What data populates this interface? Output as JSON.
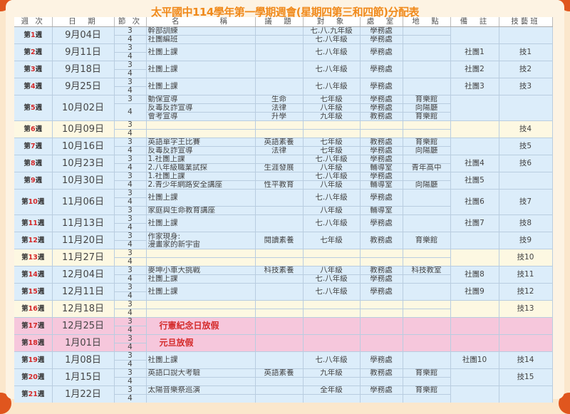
{
  "title": "太平國中114學年第一學期週會(星期四第三和四節)分配表",
  "headers": [
    "週 次",
    "日　期",
    "節 次",
    "名　　　　稱",
    "議　題",
    "對　象",
    "處　室",
    "地　點",
    "備　註",
    "技藝班"
  ],
  "colors": {
    "title": "#f08a1c",
    "week_number": "#d42a2a",
    "regular": "#dcedfa",
    "empty_week": "#fdf8e2",
    "holiday": "#f6c7dc"
  },
  "weeks": [
    {
      "n": "1",
      "date": "9月04日",
      "style": "blue",
      "rows": 2,
      "periods": [
        [
          "3",
          1
        ],
        [
          "4",
          1
        ]
      ],
      "items": [
        {
          "span": 1,
          "name": "幹部訓練",
          "topic": "",
          "target": "七.八.九年級",
          "office": "學務處",
          "place": ""
        },
        {
          "span": 1,
          "name": "社團編班",
          "topic": "",
          "target": "七.八年級",
          "office": "學務處",
          "place": ""
        }
      ],
      "note": "",
      "tech": ""
    },
    {
      "n": "2",
      "date": "9月11日",
      "style": "blue",
      "rows": 2,
      "periods": [
        [
          "3",
          1
        ],
        [
          "4",
          1
        ]
      ],
      "items": [
        {
          "span": 2,
          "name": "社團上課",
          "topic": "",
          "target": "七.八年級",
          "office": "學務處",
          "place": ""
        }
      ],
      "note": "社團1",
      "tech": "技1"
    },
    {
      "n": "3",
      "date": "9月18日",
      "style": "blue",
      "rows": 2,
      "periods": [
        [
          "3",
          1
        ],
        [
          "4",
          1
        ]
      ],
      "items": [
        {
          "span": 2,
          "name": "社團上課",
          "topic": "",
          "target": "七.八年級",
          "office": "學務處",
          "place": ""
        }
      ],
      "note": "社團2",
      "tech": "技2"
    },
    {
      "n": "4",
      "date": "9月25日",
      "style": "blue",
      "rows": 2,
      "periods": [
        [
          "3",
          1
        ],
        [
          "4",
          1
        ]
      ],
      "items": [
        {
          "span": 2,
          "name": "社團上課",
          "topic": "",
          "target": "七.八年級",
          "office": "學務處",
          "place": ""
        }
      ],
      "note": "社團3",
      "tech": "技3"
    },
    {
      "n": "5",
      "date": "10月02日",
      "style": "blue",
      "rows": 3,
      "periods": [
        [
          "3",
          1
        ],
        [
          "4",
          2
        ]
      ],
      "items": [
        {
          "span": 1,
          "name": "動保宣導",
          "topic": "生命",
          "target": "七年級",
          "office": "學務處",
          "place": "育樂館"
        },
        {
          "span": 1,
          "name": "反毒反詐宣導",
          "topic": "法律",
          "target": "八年級",
          "office": "學務處",
          "place": "向陽廳"
        },
        {
          "span": 1,
          "name": "會考宣導",
          "topic": "升學",
          "target": "九年級",
          "office": "教務處",
          "place": "育樂館"
        }
      ],
      "note": "",
      "tech": ""
    },
    {
      "n": "6",
      "date": "10月09日",
      "style": "yellow",
      "rows": 2,
      "periods": [
        [
          "3",
          1
        ],
        [
          "4",
          1
        ]
      ],
      "items": [
        {
          "span": 1,
          "name": "",
          "topic": "",
          "target": "",
          "office": "",
          "place": ""
        },
        {
          "span": 1,
          "name": "",
          "topic": "",
          "target": "",
          "office": "",
          "place": ""
        }
      ],
      "note": "",
      "tech": "技4"
    },
    {
      "n": "7",
      "date": "10月16日",
      "style": "blue",
      "rows": 2,
      "periods": [
        [
          "3",
          1
        ],
        [
          "4",
          1
        ]
      ],
      "items": [
        {
          "span": 1,
          "name": "英語單字王比賽",
          "topic": "英語素養",
          "target": "七年級",
          "office": "教務處",
          "place": "育樂館"
        },
        {
          "span": 1,
          "name": "反毒反詐宣導",
          "topic": "法律",
          "target": "七年級",
          "office": "學務處",
          "place": "向陽廳"
        }
      ],
      "note": "",
      "tech": "技5"
    },
    {
      "n": "8",
      "date": "10月23日",
      "style": "blue",
      "rows": 2,
      "periods": [
        [
          "3",
          1
        ],
        [
          "4",
          1
        ]
      ],
      "items": [
        {
          "span": 1,
          "name": "1.社團上課",
          "topic": "",
          "target": "七.八年級",
          "office": "學務處",
          "place": ""
        },
        {
          "span": 1,
          "name": "2.八年級職業試探",
          "topic": "生涯發展",
          "target": "八年級",
          "office": "輔導室",
          "place": "青年高中"
        }
      ],
      "note": "社團4",
      "tech": "技6"
    },
    {
      "n": "9",
      "date": "10月30日",
      "style": "blue",
      "rows": 2,
      "periods": [
        [
          "3",
          1
        ],
        [
          "4",
          1
        ]
      ],
      "items": [
        {
          "span": 1,
          "name": "1.社團上課",
          "topic": "",
          "target": "七.八年級",
          "office": "學務處",
          "place": ""
        },
        {
          "span": 1,
          "name": "2.青少年網路安全講座",
          "topic": "性平教育",
          "target": "八年級",
          "office": "輔導室",
          "place": "向陽廳"
        }
      ],
      "note": "社團5",
      "tech": ""
    },
    {
      "n": "10",
      "date": "11月06日",
      "style": "blue",
      "rows": 3,
      "periods": [
        [
          "3",
          1
        ],
        [
          "4",
          1
        ],
        [
          "3",
          1
        ]
      ],
      "items": [
        {
          "span": 2,
          "name": "社團上課",
          "topic": "",
          "target": "七.八年級",
          "office": "學務處",
          "place": ""
        },
        {
          "span": 1,
          "name": "家庭與生命教育講座",
          "topic": "",
          "target": "八年級",
          "office": "輔導室",
          "place": ""
        }
      ],
      "note": "社團6",
      "tech": "技7"
    },
    {
      "n": "11",
      "date": "11月13日",
      "style": "blue",
      "rows": 2,
      "periods": [
        [
          "3",
          1
        ],
        [
          "4",
          1
        ]
      ],
      "items": [
        {
          "span": 2,
          "name": "社團上課",
          "topic": "",
          "target": "七.八年級",
          "office": "學務處",
          "place": ""
        }
      ],
      "note": "社團7",
      "tech": "技8"
    },
    {
      "n": "12",
      "date": "11月20日",
      "style": "blue",
      "rows": 2,
      "periods": [
        [
          "3",
          1
        ],
        [
          "4",
          1
        ]
      ],
      "items": [
        {
          "span": 2,
          "name": "作家現身:\n漫畫家的新宇宙",
          "topic": "閱讀素養",
          "target": "七年級",
          "office": "教務處",
          "place": "育樂館"
        }
      ],
      "note": "",
      "tech": "技9"
    },
    {
      "n": "13",
      "date": "11月27日",
      "style": "yellow",
      "rows": 2,
      "periods": [
        [
          "3",
          1
        ],
        [
          "4",
          1
        ]
      ],
      "items": [
        {
          "span": 1,
          "name": "",
          "topic": "",
          "target": "",
          "office": "",
          "place": ""
        },
        {
          "span": 1,
          "name": "",
          "topic": "",
          "target": "",
          "office": "",
          "place": ""
        }
      ],
      "note": "",
      "tech": "技10"
    },
    {
      "n": "14",
      "date": "12月04日",
      "style": "blue",
      "rows": 2,
      "periods": [
        [
          "3",
          1
        ],
        [
          "4",
          1
        ]
      ],
      "items": [
        {
          "span": 1,
          "name": "麥坤小車大挑戰",
          "topic": "科技素養",
          "target": "八年級",
          "office": "教務處",
          "place": "科技教室"
        },
        {
          "span": 1,
          "name": "社團上課",
          "topic": "",
          "target": "七.八年級",
          "office": "學務處",
          "place": ""
        }
      ],
      "note": "社團8",
      "tech": "技11"
    },
    {
      "n": "15",
      "date": "12月11日",
      "style": "blue",
      "rows": 2,
      "periods": [
        [
          "3",
          1
        ],
        [
          "4",
          1
        ]
      ],
      "items": [
        {
          "span": 2,
          "name": "社團上課",
          "topic": "",
          "target": "七.八年級",
          "office": "學務處",
          "place": ""
        }
      ],
      "note": "社團9",
      "tech": "技12"
    },
    {
      "n": "16",
      "date": "12月18日",
      "style": "yellow",
      "rows": 2,
      "periods": [
        [
          "3",
          1
        ],
        [
          "4",
          1
        ]
      ],
      "items": [
        {
          "span": 1,
          "name": "",
          "topic": "",
          "target": "",
          "office": "",
          "place": ""
        },
        {
          "span": 1,
          "name": "",
          "topic": "",
          "target": "",
          "office": "",
          "place": ""
        }
      ],
      "note": "",
      "tech": "技13"
    },
    {
      "n": "17",
      "date": "12月25日",
      "style": "pink",
      "rows": 2,
      "periods": [
        [
          "3",
          1
        ],
        [
          "4",
          1
        ]
      ],
      "items": [
        {
          "span": 2,
          "holiday": true,
          "name": "行憲紀念日放假",
          "topic": "",
          "target": "",
          "office": "",
          "place": ""
        }
      ],
      "note": "",
      "tech": ""
    },
    {
      "n": "18",
      "date": "1月01日",
      "style": "pink",
      "rows": 2,
      "periods": [
        [
          "3",
          1
        ],
        [
          "4",
          1
        ]
      ],
      "items": [
        {
          "span": 2,
          "holiday": true,
          "name": "元旦放假",
          "topic": "",
          "target": "",
          "office": "",
          "place": ""
        }
      ],
      "note": "",
      "tech": ""
    },
    {
      "n": "19",
      "date": "1月08日",
      "style": "blue",
      "rows": 2,
      "periods": [
        [
          "3",
          1
        ],
        [
          "4",
          1
        ]
      ],
      "items": [
        {
          "span": 2,
          "name": "社團上課",
          "topic": "",
          "target": "七.八年級",
          "office": "學務處",
          "place": ""
        }
      ],
      "note": "社團10",
      "tech": "技14"
    },
    {
      "n": "20",
      "date": "1月15日",
      "style": "blue",
      "rows": 2,
      "periods": [
        [
          "3",
          1
        ],
        [
          "4",
          1
        ]
      ],
      "items": [
        {
          "span": 1,
          "name": "英語口說大考驗",
          "topic": "英語素養",
          "target": "九年級",
          "office": "教務處",
          "place": "育樂館"
        },
        {
          "span": 1,
          "name": "",
          "topic": "",
          "target": "",
          "office": "",
          "place": ""
        }
      ],
      "note": "",
      "tech": "技15"
    },
    {
      "n": "21",
      "date": "1月22日",
      "style": "blue",
      "rows": 2,
      "periods": [
        [
          "3",
          1
        ],
        [
          "4",
          1
        ]
      ],
      "items": [
        {
          "span": 1,
          "name": "太陽音樂祭巡演",
          "topic": "",
          "target": "全年級",
          "office": "學務處",
          "place": "育樂館"
        },
        {
          "span": 1,
          "name": "",
          "topic": "",
          "target": "",
          "office": "",
          "place": ""
        }
      ],
      "note": "",
      "tech": ""
    }
  ],
  "week_prefix": "第",
  "week_suffix": "週"
}
